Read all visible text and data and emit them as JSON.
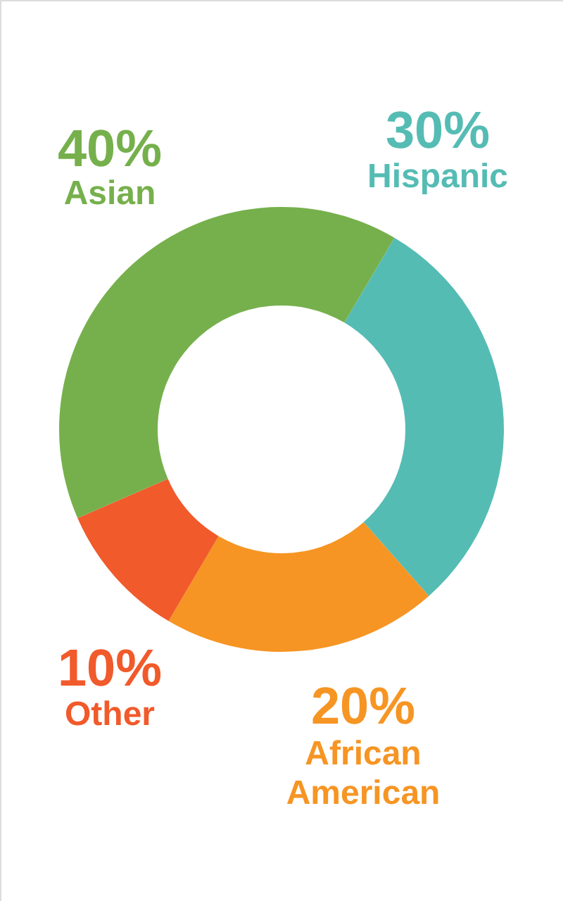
{
  "chart_data": {
    "type": "donut",
    "categories": [
      "Hispanic",
      "African American",
      "Other",
      "Asian"
    ],
    "values": [
      30,
      20,
      10,
      40
    ],
    "colors": [
      "#55bcb4",
      "#f69523",
      "#f15a2b",
      "#76b04c"
    ],
    "value_labels": [
      "30%",
      "20%",
      "10%",
      "40%"
    ]
  }
}
